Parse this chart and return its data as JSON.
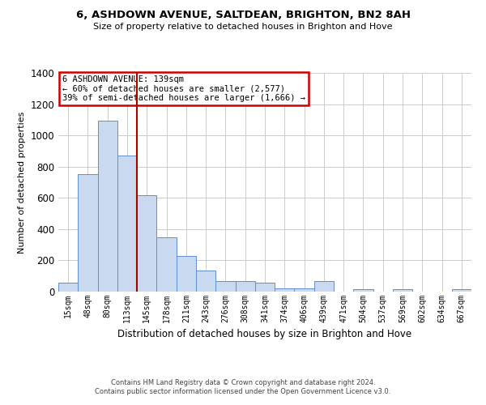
{
  "title": "6, ASHDOWN AVENUE, SALTDEAN, BRIGHTON, BN2 8AH",
  "subtitle": "Size of property relative to detached houses in Brighton and Hove",
  "xlabel": "Distribution of detached houses by size in Brighton and Hove",
  "ylabel": "Number of detached properties",
  "bin_labels": [
    "15sqm",
    "48sqm",
    "80sqm",
    "113sqm",
    "145sqm",
    "178sqm",
    "211sqm",
    "243sqm",
    "276sqm",
    "308sqm",
    "341sqm",
    "374sqm",
    "406sqm",
    "439sqm",
    "471sqm",
    "504sqm",
    "537sqm",
    "569sqm",
    "602sqm",
    "634sqm",
    "667sqm"
  ],
  "bar_heights": [
    55,
    750,
    1095,
    870,
    615,
    350,
    228,
    135,
    70,
    70,
    55,
    20,
    20,
    70,
    0,
    15,
    0,
    15,
    0,
    0,
    15
  ],
  "bar_color": "#c9d9f0",
  "bar_edge_color": "#6090d0",
  "vline_x_index": 4,
  "vline_color": "#aa0000",
  "annotation_title": "6 ASHDOWN AVENUE: 139sqm",
  "annotation_line1": "← 60% of detached houses are smaller (2,577)",
  "annotation_line2": "39% of semi-detached houses are larger (1,666) →",
  "annotation_box_color": "#cc0000",
  "ylim": [
    0,
    1400
  ],
  "yticks": [
    0,
    200,
    400,
    600,
    800,
    1000,
    1200,
    1400
  ],
  "footer1": "Contains HM Land Registry data © Crown copyright and database right 2024.",
  "footer2": "Contains public sector information licensed under the Open Government Licence v3.0.",
  "bg_color": "#ffffff",
  "grid_color": "#cccccc"
}
